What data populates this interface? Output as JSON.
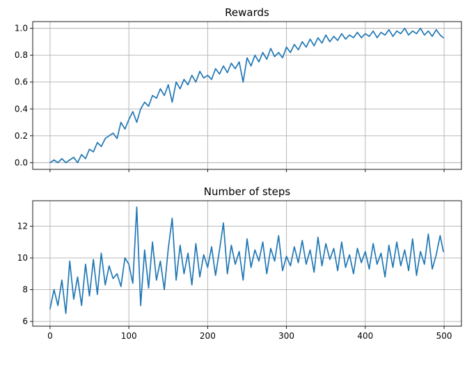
{
  "chart_data": [
    {
      "type": "line",
      "title": "Rewards",
      "xlabel": "",
      "ylabel": "",
      "xlim": [
        -22,
        522
      ],
      "ylim": [
        -0.05,
        1.05
      ],
      "xticks": [
        0,
        100,
        200,
        300,
        400,
        500
      ],
      "xtick_labels_visible": false,
      "yticks": [
        0.0,
        0.2,
        0.4,
        0.6,
        0.8,
        1.0
      ],
      "ytick_labels": [
        "0.0",
        "0.2",
        "0.4",
        "0.6",
        "0.8",
        "1.0"
      ],
      "grid": true,
      "color": "#1f77b4",
      "series": [
        {
          "x": [
            0,
            5,
            10,
            15,
            20,
            25,
            30,
            35,
            40,
            45,
            50,
            55,
            60,
            65,
            70,
            75,
            80,
            85,
            90,
            95,
            100,
            105,
            110,
            115,
            120,
            125,
            130,
            135,
            140,
            145,
            150,
            155,
            160,
            165,
            170,
            175,
            180,
            185,
            190,
            195,
            200,
            205,
            210,
            215,
            220,
            225,
            230,
            235,
            240,
            245,
            250,
            255,
            260,
            265,
            270,
            275,
            280,
            285,
            290,
            295,
            300,
            305,
            310,
            315,
            320,
            325,
            330,
            335,
            340,
            345,
            350,
            355,
            360,
            365,
            370,
            375,
            380,
            385,
            390,
            395,
            400,
            405,
            410,
            415,
            420,
            425,
            430,
            435,
            440,
            445,
            450,
            455,
            460,
            465,
            470,
            475,
            480,
            485,
            490,
            495,
            499
          ],
          "y": [
            0.0,
            0.02,
            0.0,
            0.03,
            0.0,
            0.02,
            0.04,
            0.0,
            0.06,
            0.03,
            0.1,
            0.08,
            0.15,
            0.12,
            0.18,
            0.2,
            0.22,
            0.18,
            0.3,
            0.25,
            0.32,
            0.38,
            0.3,
            0.4,
            0.45,
            0.42,
            0.5,
            0.48,
            0.55,
            0.5,
            0.58,
            0.45,
            0.6,
            0.55,
            0.62,
            0.58,
            0.65,
            0.6,
            0.68,
            0.63,
            0.65,
            0.62,
            0.7,
            0.66,
            0.72,
            0.67,
            0.74,
            0.7,
            0.75,
            0.6,
            0.78,
            0.72,
            0.8,
            0.75,
            0.82,
            0.77,
            0.85,
            0.79,
            0.82,
            0.78,
            0.86,
            0.82,
            0.88,
            0.84,
            0.9,
            0.86,
            0.92,
            0.87,
            0.93,
            0.89,
            0.95,
            0.9,
            0.94,
            0.91,
            0.96,
            0.92,
            0.95,
            0.93,
            0.97,
            0.93,
            0.96,
            0.94,
            0.98,
            0.93,
            0.97,
            0.95,
            0.99,
            0.94,
            0.98,
            0.96,
            1.0,
            0.95,
            0.98,
            0.96,
            1.0,
            0.95,
            0.98,
            0.94,
            0.99,
            0.95,
            0.93
          ]
        }
      ]
    },
    {
      "type": "line",
      "title": "Number of steps",
      "xlabel": "",
      "ylabel": "",
      "xlim": [
        -22,
        522
      ],
      "ylim": [
        5.7,
        13.6
      ],
      "xticks": [
        0,
        100,
        200,
        300,
        400,
        500
      ],
      "xtick_labels": [
        "0",
        "100",
        "200",
        "300",
        "400",
        "500"
      ],
      "yticks": [
        6,
        8,
        10,
        12
      ],
      "ytick_labels": [
        "6",
        "8",
        "10",
        "12"
      ],
      "grid": true,
      "color": "#1f77b4",
      "series": [
        {
          "x": [
            0,
            5,
            10,
            15,
            20,
            25,
            30,
            35,
            40,
            45,
            50,
            55,
            60,
            65,
            70,
            75,
            80,
            85,
            90,
            95,
            100,
            105,
            110,
            115,
            120,
            125,
            130,
            135,
            140,
            145,
            150,
            155,
            160,
            165,
            170,
            175,
            180,
            185,
            190,
            195,
            200,
            205,
            210,
            215,
            220,
            225,
            230,
            235,
            240,
            245,
            250,
            255,
            260,
            265,
            270,
            275,
            280,
            285,
            290,
            295,
            300,
            305,
            310,
            315,
            320,
            325,
            330,
            335,
            340,
            345,
            350,
            355,
            360,
            365,
            370,
            375,
            380,
            385,
            390,
            395,
            400,
            405,
            410,
            415,
            420,
            425,
            430,
            435,
            440,
            445,
            450,
            455,
            460,
            465,
            470,
            475,
            480,
            485,
            490,
            495,
            499
          ],
          "y": [
            6.8,
            8.0,
            7.0,
            8.6,
            6.5,
            9.8,
            7.4,
            8.8,
            7.0,
            9.6,
            7.6,
            9.9,
            7.7,
            10.3,
            8.3,
            9.5,
            8.7,
            9.0,
            8.2,
            10.0,
            9.6,
            8.4,
            13.2,
            7.0,
            10.5,
            8.1,
            11.0,
            8.6,
            9.8,
            8.0,
            10.6,
            12.5,
            8.6,
            10.8,
            9.0,
            10.3,
            8.3,
            10.9,
            8.8,
            10.2,
            9.4,
            10.7,
            8.9,
            10.5,
            12.2,
            9.0,
            10.8,
            9.6,
            10.4,
            8.6,
            11.2,
            9.4,
            10.5,
            9.8,
            11.0,
            9.0,
            10.6,
            9.8,
            11.4,
            9.2,
            10.1,
            9.5,
            10.7,
            9.7,
            11.1,
            9.6,
            10.5,
            9.1,
            11.3,
            9.5,
            10.9,
            9.9,
            10.6,
            9.2,
            11.0,
            9.4,
            10.2,
            9.0,
            10.6,
            9.7,
            10.4,
            9.3,
            10.9,
            9.6,
            10.3,
            8.8,
            10.8,
            9.4,
            11.0,
            9.5,
            10.5,
            9.2,
            11.2,
            8.9,
            10.4,
            9.6,
            11.5,
            9.3,
            10.2,
            11.4,
            10.4
          ]
        }
      ]
    }
  ]
}
